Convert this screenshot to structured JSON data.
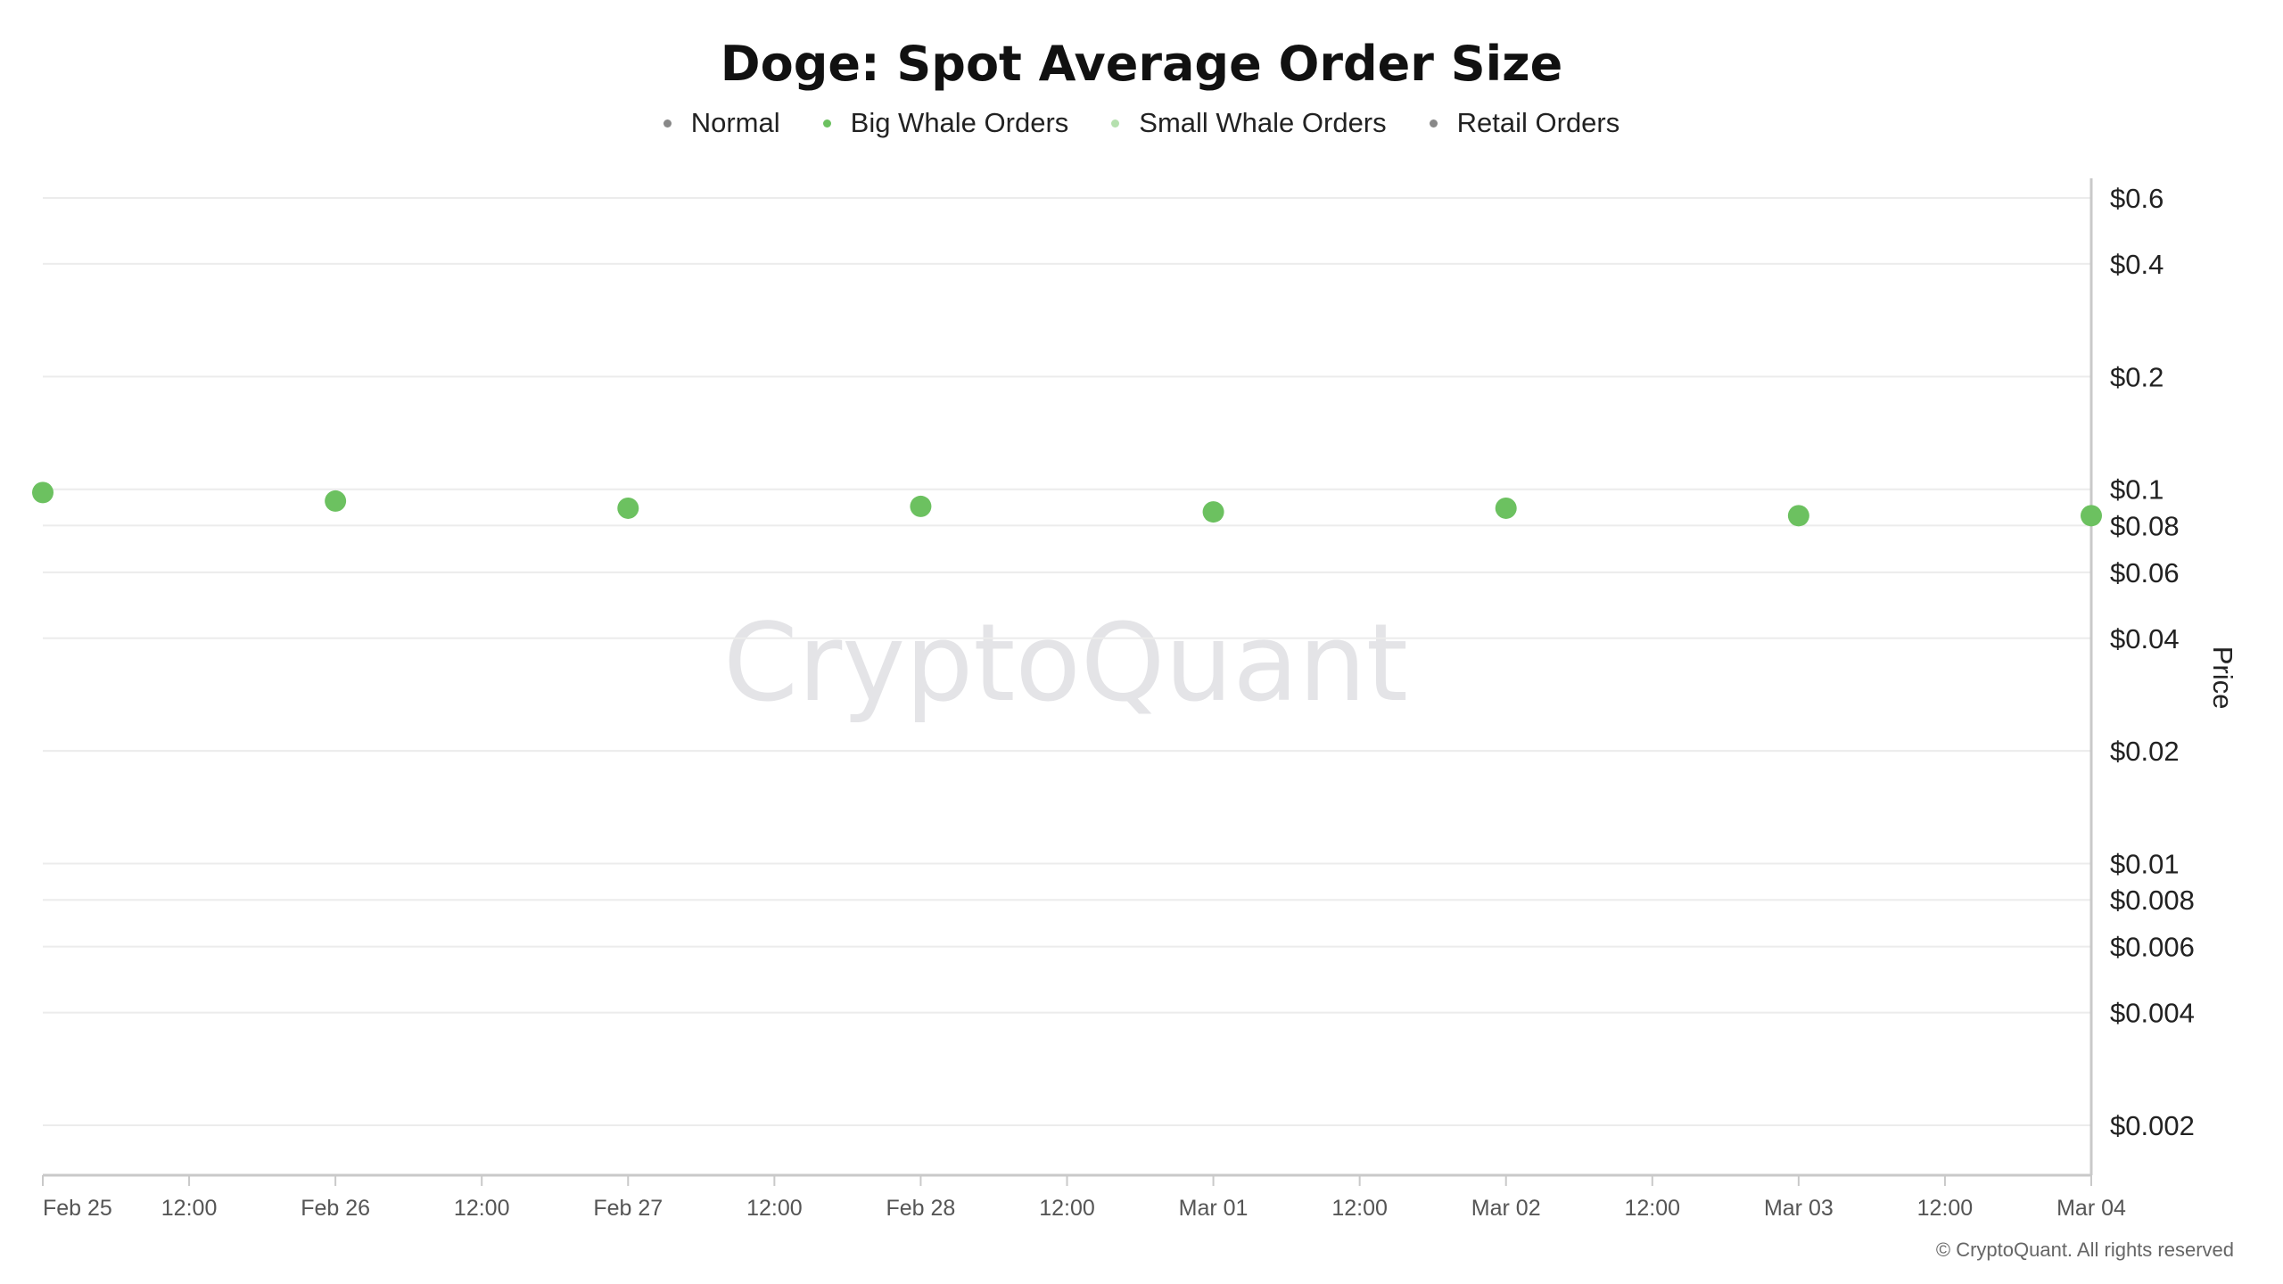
{
  "chart_data": {
    "type": "scatter",
    "title": "Doge: Spot Average Order Size",
    "ylabel": "Price",
    "xlabel": "",
    "yscale": "log",
    "ylim": [
      0.0016,
      0.65
    ],
    "grid": true,
    "legend_position": "top-center",
    "legend": [
      {
        "name": "Normal",
        "color": "#888888"
      },
      {
        "name": "Big Whale Orders",
        "color": "#6cc160"
      },
      {
        "name": "Small Whale Orders",
        "color": "#b5e0ae"
      },
      {
        "name": "Retail Orders",
        "color": "#888888"
      }
    ],
    "y_ticks": [
      {
        "value": 0.6,
        "label": "$0.6"
      },
      {
        "value": 0.4,
        "label": "$0.4"
      },
      {
        "value": 0.2,
        "label": "$0.2"
      },
      {
        "value": 0.1,
        "label": "$0.1"
      },
      {
        "value": 0.08,
        "label": "$0.08"
      },
      {
        "value": 0.06,
        "label": "$0.06"
      },
      {
        "value": 0.04,
        "label": "$0.04"
      },
      {
        "value": 0.02,
        "label": "$0.02"
      },
      {
        "value": 0.01,
        "label": "$0.01"
      },
      {
        "value": 0.008,
        "label": "$0.008"
      },
      {
        "value": 0.006,
        "label": "$0.006"
      },
      {
        "value": 0.004,
        "label": "$0.004"
      },
      {
        "value": 0.002,
        "label": "$0.002"
      }
    ],
    "x_ticks": [
      "Feb 25",
      "12:00",
      "Feb 26",
      "12:00",
      "Feb 27",
      "12:00",
      "Feb 28",
      "12:00",
      "Mar 01",
      "12:00",
      "Mar 02",
      "12:00",
      "Mar 03",
      "12:00",
      "Mar 04"
    ],
    "series": [
      {
        "name": "Big Whale Orders",
        "color": "#6cc160",
        "points": [
          {
            "x": "Feb 25",
            "y": 0.098
          },
          {
            "x": "Feb 26",
            "y": 0.093
          },
          {
            "x": "Feb 27",
            "y": 0.089
          },
          {
            "x": "Feb 28",
            "y": 0.09
          },
          {
            "x": "Mar 01",
            "y": 0.087
          },
          {
            "x": "Mar 02",
            "y": 0.089
          },
          {
            "x": "Mar 03",
            "y": 0.085
          },
          {
            "x": "Mar 04",
            "y": 0.085
          }
        ]
      }
    ]
  },
  "watermark": "CryptoQuant",
  "credit": "© CryptoQuant. All rights reserved"
}
